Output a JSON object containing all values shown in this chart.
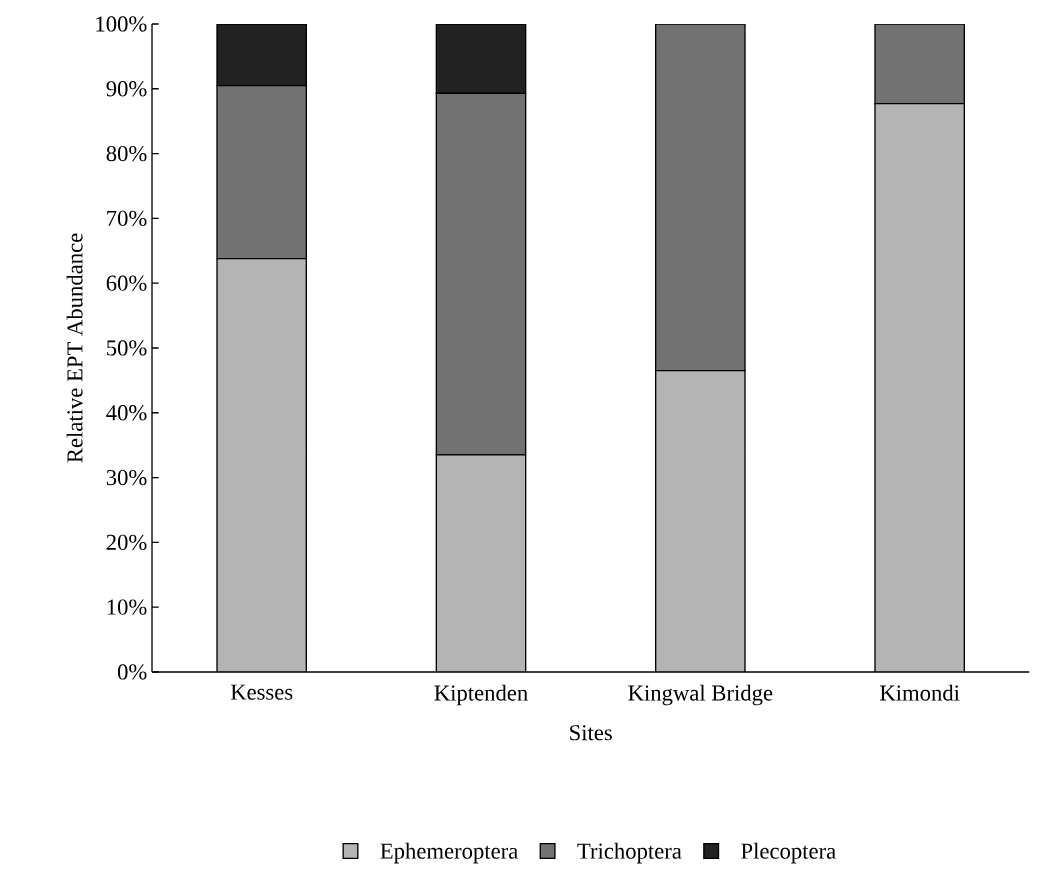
{
  "chart_data": {
    "type": "bar",
    "stacked": true,
    "xlabel": "Sites",
    "ylabel": "Relative EPT Abundance",
    "categories": [
      "Kesses",
      "Kiptenden",
      "Kingwal Bridge",
      "Kimondi"
    ],
    "series": [
      {
        "name": "Ephemeroptera",
        "color": "#b4b4b4",
        "values": [
          63.8,
          33.5,
          46.5,
          87.7
        ]
      },
      {
        "name": "Trichoptera",
        "color": "#727272",
        "values": [
          26.7,
          55.8,
          53.5,
          12.3
        ]
      },
      {
        "name": "Plecoptera",
        "color": "#222222",
        "values": [
          9.5,
          10.7,
          0,
          0
        ]
      }
    ],
    "ylim": [
      0,
      100
    ],
    "yticks": [
      {
        "value": 0,
        "label": "0%"
      },
      {
        "value": 10,
        "label": "10%"
      },
      {
        "value": 20,
        "label": "20%"
      },
      {
        "value": 30,
        "label": "30%"
      },
      {
        "value": 40,
        "label": "40%"
      },
      {
        "value": 50,
        "label": "50%"
      },
      {
        "value": 60,
        "label": "60%"
      },
      {
        "value": 70,
        "label": "70%"
      },
      {
        "value": 80,
        "label": "80%"
      },
      {
        "value": 90,
        "label": "90%"
      },
      {
        "value": 100,
        "label": "100%"
      }
    ],
    "legend": "bottom"
  }
}
